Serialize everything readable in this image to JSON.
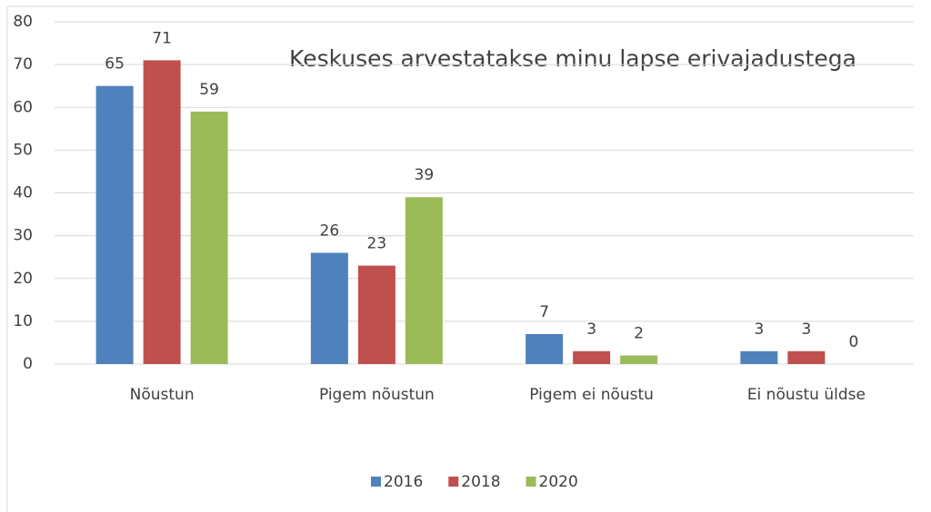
{
  "chart_data": {
    "type": "bar",
    "title": "Keskuses arvestatakse minu lapse erivajadustega",
    "categories": [
      "Nõustun",
      "Pigem nõustun",
      "Pigem ei nõustu",
      "Ei nõustu üldse"
    ],
    "series": [
      {
        "name": "2016",
        "color": "#4f81bd",
        "values": [
          65,
          26,
          7,
          3
        ]
      },
      {
        "name": "2018",
        "color": "#c0504d",
        "values": [
          71,
          23,
          3,
          3
        ]
      },
      {
        "name": "2020",
        "color": "#9bbb59",
        "values": [
          59,
          39,
          2,
          0
        ]
      }
    ],
    "ylim": [
      0,
      80
    ],
    "yticks": [
      0,
      10,
      20,
      30,
      40,
      50,
      60,
      70,
      80
    ],
    "grid": true,
    "legend": "bottom"
  }
}
